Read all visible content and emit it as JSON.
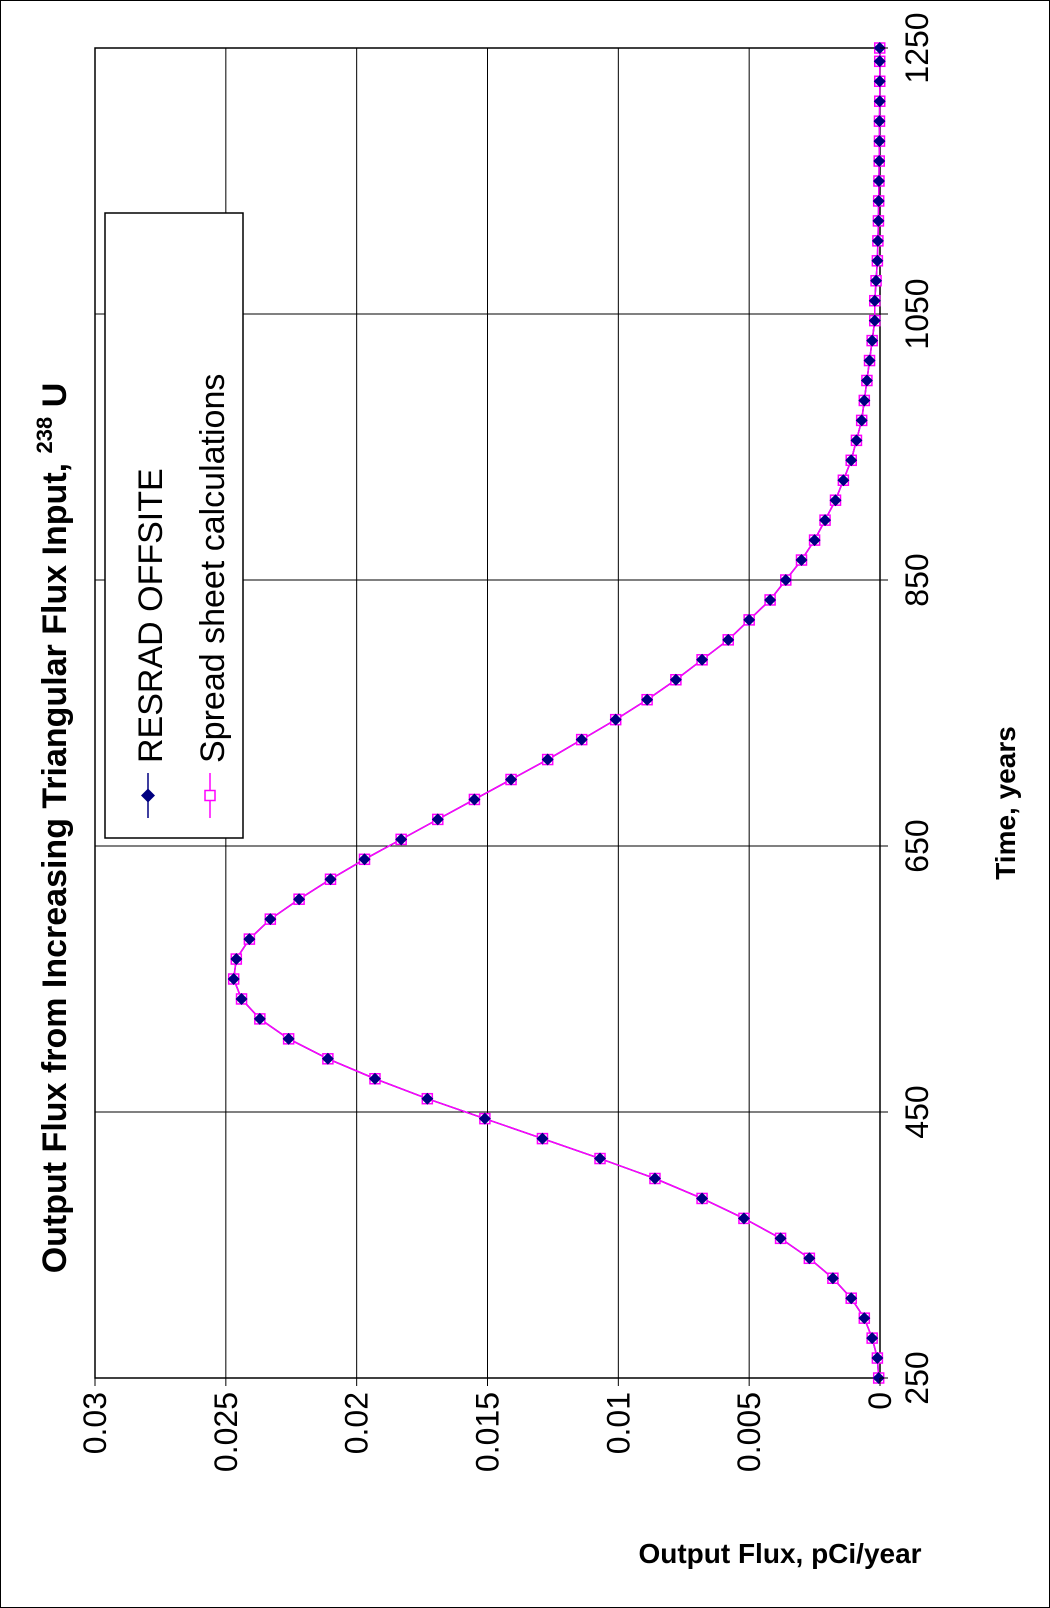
{
  "chart_data": {
    "type": "line",
    "title": "Output Flux from Increasing Triangular Flux Input,",
    "title_superscript": "238",
    "title_suffix": "U",
    "xlabel": "Time, years",
    "ylabel": "Output Flux, pCi/year",
    "xlim": [
      250,
      1250
    ],
    "ylim": [
      0,
      0.03
    ],
    "x_ticks": [
      "250",
      "450",
      "650",
      "850",
      "1050",
      "1250"
    ],
    "y_ticks": [
      "0",
      "0.005",
      "0.01",
      "0.015",
      "0.02",
      "0.025",
      "0.03"
    ],
    "grid": true,
    "legend_position": "upper-left",
    "x": [
      250,
      265,
      280,
      295,
      310,
      325,
      340,
      355,
      370,
      385,
      400,
      415,
      430,
      445,
      460,
      475,
      490,
      505,
      520,
      535,
      550,
      565,
      580,
      595,
      610,
      625,
      640,
      655,
      670,
      685,
      700,
      715,
      730,
      745,
      760,
      775,
      790,
      805,
      820,
      835,
      850,
      865,
      880,
      895,
      910,
      925,
      940,
      955,
      970,
      985,
      1000,
      1015,
      1030,
      1045,
      1060,
      1075,
      1090,
      1105,
      1120,
      1135,
      1150,
      1165,
      1180,
      1195,
      1210,
      1225,
      1240,
      1250
    ],
    "series": [
      {
        "name": "RESRAD OFFSITE",
        "color": "#000080",
        "marker": "diamond-filled",
        "values": [
          5e-05,
          0.0001,
          0.0003,
          0.0006,
          0.0011,
          0.0018,
          0.0027,
          0.0038,
          0.0052,
          0.0068,
          0.0086,
          0.0107,
          0.0129,
          0.0151,
          0.0173,
          0.0193,
          0.0211,
          0.0226,
          0.0237,
          0.0244,
          0.0247,
          0.0246,
          0.0241,
          0.0233,
          0.0222,
          0.021,
          0.0197,
          0.0183,
          0.0169,
          0.0155,
          0.0141,
          0.0127,
          0.0114,
          0.0101,
          0.0089,
          0.0078,
          0.0068,
          0.0058,
          0.005,
          0.0042,
          0.0036,
          0.003,
          0.0025,
          0.0021,
          0.0017,
          0.0014,
          0.0011,
          0.0009,
          0.0007,
          0.0006,
          0.0005,
          0.0004,
          0.0003,
          0.0002,
          0.0002,
          0.00015,
          0.0001,
          8e-05,
          6e-05,
          5e-05,
          4e-05,
          3e-05,
          2e-05,
          2e-05,
          1e-05,
          1e-05,
          1e-05,
          1e-05
        ]
      },
      {
        "name": "Spread sheet calculations",
        "color": "#ff00ff",
        "marker": "square-open",
        "values": [
          5e-05,
          0.0001,
          0.0003,
          0.0006,
          0.0011,
          0.0018,
          0.0027,
          0.0038,
          0.0052,
          0.0068,
          0.0086,
          0.0107,
          0.0129,
          0.0151,
          0.0173,
          0.0193,
          0.0211,
          0.0226,
          0.0237,
          0.0244,
          0.0247,
          0.0246,
          0.0241,
          0.0233,
          0.0222,
          0.021,
          0.0197,
          0.0183,
          0.0169,
          0.0155,
          0.0141,
          0.0127,
          0.0114,
          0.0101,
          0.0089,
          0.0078,
          0.0068,
          0.0058,
          0.005,
          0.0042,
          0.0036,
          0.003,
          0.0025,
          0.0021,
          0.0017,
          0.0014,
          0.0011,
          0.0009,
          0.0007,
          0.0006,
          0.0005,
          0.0004,
          0.0003,
          0.0002,
          0.0002,
          0.00015,
          0.0001,
          8e-05,
          6e-05,
          5e-05,
          4e-05,
          3e-05,
          2e-05,
          2e-05,
          1e-05,
          1e-05,
          1e-05,
          1e-05
        ]
      }
    ]
  }
}
